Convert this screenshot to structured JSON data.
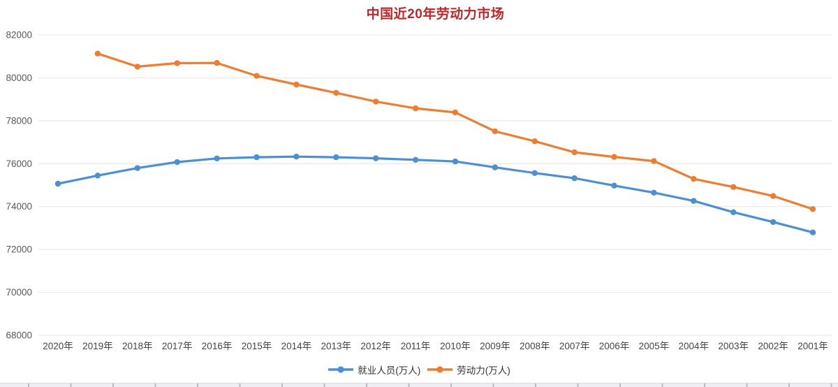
{
  "title": {
    "text": "中国近20年劳动力市场",
    "color": "#c02528"
  },
  "colors": {
    "employment_series": "#4a90d2",
    "laborforce_series": "#ed7d31",
    "gridline": "#e4e4e6",
    "axis_text": "#58595b"
  },
  "chart_data": {
    "type": "line",
    "title": "中国近20年劳动力市场",
    "categories": [
      "2020年",
      "2019年",
      "2018年",
      "2017年",
      "2016年",
      "2015年",
      "2014年",
      "2013年",
      "2012年",
      "2011年",
      "2010年",
      "2009年",
      "2008年",
      "2007年",
      "2006年",
      "2005年",
      "2004年",
      "2003年",
      "2002年",
      "2001年"
    ],
    "series": [
      {
        "name": "就业人员(万人)",
        "color": "#4a90d2",
        "values": [
          75064,
          75447,
          75793,
          76074,
          76245,
          76300,
          76330,
          76300,
          76250,
          76180,
          76105,
          75828,
          75564,
          75321,
          74978,
          74647,
          74264,
          73736,
          73280,
          72797
        ]
      },
      {
        "name": "劳动力(万人)",
        "color": "#ed7d31",
        "values": [
          null,
          81130,
          80523,
          80686,
          80694,
          80091,
          79690,
          79300,
          78894,
          78579,
          78388,
          77510,
          77046,
          76531,
          76315,
          76120,
          75290,
          74911,
          74492,
          73884
        ]
      }
    ],
    "xlabel": "",
    "ylabel": "",
    "ylim": [
      68000,
      82000
    ],
    "ytick_step": 2000,
    "y_tick_labels": [
      "82000",
      "80000",
      "78000",
      "76000",
      "74000",
      "72000",
      "70000",
      "68000"
    ],
    "grid": "horizontal",
    "legend_position": "bottom",
    "x_axis_note": "years shown in reverse chronological order, 2020 at left"
  }
}
